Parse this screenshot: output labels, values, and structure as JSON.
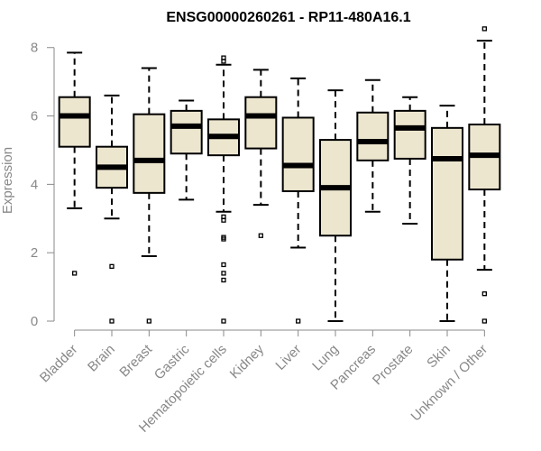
{
  "chart_data": {
    "type": "boxplot",
    "title": "ENSG00000260261 - RP11-480A16.1",
    "xlabel": "",
    "ylabel": "Expression",
    "ylim": [
      0,
      8.6
    ],
    "yticks": [
      0,
      2,
      4,
      6,
      8
    ],
    "box_fill": "#ede6cf",
    "categories": [
      "Bladder",
      "Brain",
      "Breast",
      "Gastric",
      "Hematopoietic cells",
      "Kidney",
      "Liver",
      "Lung",
      "Pancreas",
      "Prostate",
      "Skin",
      "Unknown / Other"
    ],
    "boxes": [
      {
        "name": "Bladder",
        "whisker_low": 3.3,
        "q1": 5.1,
        "median": 6.0,
        "q3": 6.55,
        "whisker_high": 7.85,
        "outliers": [
          1.4
        ]
      },
      {
        "name": "Brain",
        "whisker_low": 3.0,
        "q1": 3.9,
        "median": 4.5,
        "q3": 5.1,
        "whisker_high": 6.6,
        "outliers": [
          1.6,
          0.0
        ]
      },
      {
        "name": "Breast",
        "whisker_low": 1.9,
        "q1": 3.75,
        "median": 4.7,
        "q3": 6.05,
        "whisker_high": 7.4,
        "outliers": [
          0.0
        ]
      },
      {
        "name": "Gastric",
        "whisker_low": 3.55,
        "q1": 4.9,
        "median": 5.7,
        "q3": 6.15,
        "whisker_high": 6.45,
        "outliers": []
      },
      {
        "name": "Hematopoietic cells",
        "whisker_low": 3.2,
        "q1": 4.85,
        "median": 5.4,
        "q3": 5.9,
        "whisker_high": 7.5,
        "outliers": [
          7.7,
          7.6,
          3.05,
          2.95,
          2.45,
          2.4,
          1.65,
          1.4,
          1.2,
          0.0
        ]
      },
      {
        "name": "Kidney",
        "whisker_low": 3.4,
        "q1": 5.05,
        "median": 6.0,
        "q3": 6.55,
        "whisker_high": 7.35,
        "outliers": [
          2.5
        ]
      },
      {
        "name": "Liver",
        "whisker_low": 2.15,
        "q1": 3.8,
        "median": 4.55,
        "q3": 5.95,
        "whisker_high": 7.1,
        "outliers": [
          0.0
        ]
      },
      {
        "name": "Lung",
        "whisker_low": 0.0,
        "q1": 2.5,
        "median": 3.9,
        "q3": 5.3,
        "whisker_high": 6.75,
        "outliers": []
      },
      {
        "name": "Pancreas",
        "whisker_low": 3.2,
        "q1": 4.7,
        "median": 5.25,
        "q3": 6.1,
        "whisker_high": 7.05,
        "outliers": []
      },
      {
        "name": "Prostate",
        "whisker_low": 2.85,
        "q1": 4.75,
        "median": 5.65,
        "q3": 6.15,
        "whisker_high": 6.55,
        "outliers": []
      },
      {
        "name": "Skin",
        "whisker_low": 0.0,
        "q1": 1.8,
        "median": 4.75,
        "q3": 5.65,
        "whisker_high": 6.3,
        "outliers": []
      },
      {
        "name": "Unknown / Other",
        "whisker_low": 1.5,
        "q1": 3.85,
        "median": 4.85,
        "q3": 5.75,
        "whisker_high": 8.2,
        "outliers": [
          8.55,
          0.8,
          0.0
        ]
      }
    ]
  }
}
